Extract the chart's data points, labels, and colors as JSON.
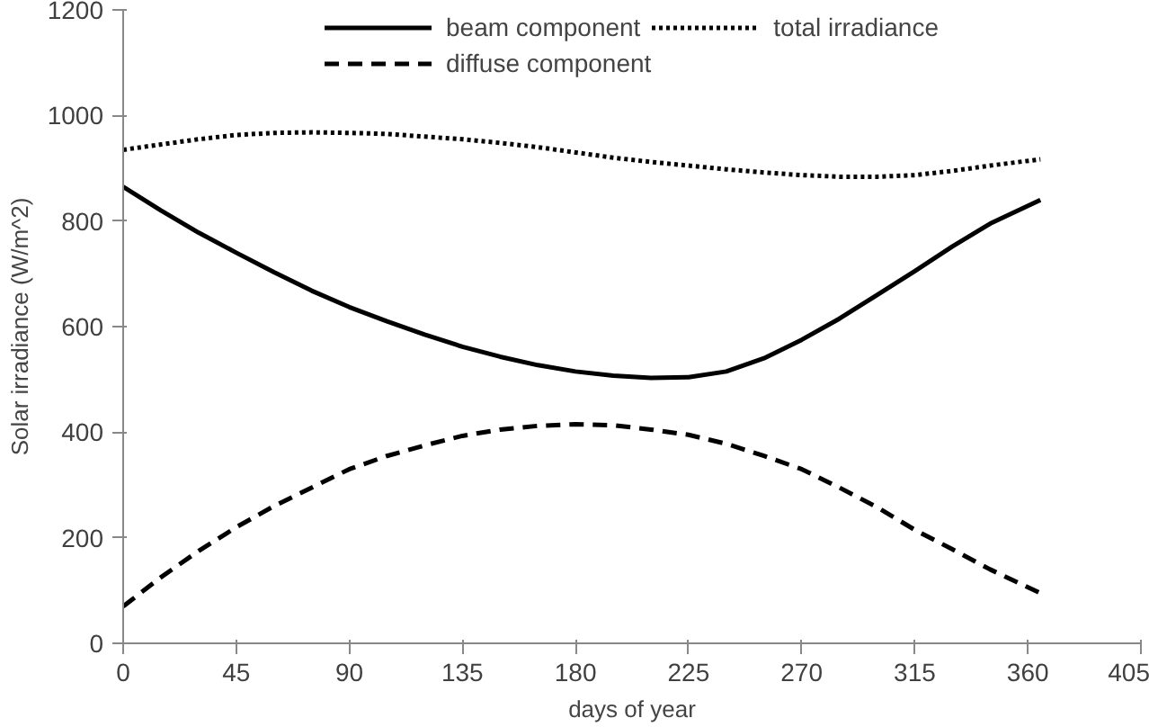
{
  "chart_data": {
    "type": "line",
    "xlabel": "days of year",
    "ylabel": "Solar irradiance (W/m^2)",
    "xlim": [
      0,
      405
    ],
    "xticks": [
      0,
      45,
      90,
      135,
      180,
      225,
      270,
      315,
      360,
      405
    ],
    "ylim": [
      0,
      1200
    ],
    "yticks": [
      0,
      200,
      400,
      600,
      800,
      1000,
      1200
    ],
    "x": [
      0,
      15,
      30,
      45,
      60,
      75,
      90,
      105,
      120,
      135,
      150,
      165,
      180,
      195,
      210,
      225,
      240,
      255,
      270,
      285,
      300,
      315,
      330,
      345,
      365
    ],
    "series": [
      {
        "name": "beam component",
        "color": "#000000",
        "line_style": "solid",
        "values": [
          865,
          820,
          778,
          740,
          703,
          668,
          637,
          610,
          585,
          562,
          543,
          527,
          515,
          507,
          503,
          504,
          515,
          540,
          575,
          615,
          660,
          705,
          752,
          795,
          840
        ]
      },
      {
        "name": "diffuse component",
        "color": "#000000",
        "line_style": "dashed",
        "values": [
          70,
          125,
          175,
          220,
          260,
          295,
          330,
          355,
          375,
          393,
          405,
          412,
          415,
          413,
          405,
          395,
          378,
          355,
          330,
          295,
          258,
          215,
          178,
          140,
          95
        ]
      },
      {
        "name": "total irradiance",
        "color": "#000000",
        "line_style": "dotted",
        "values": [
          935,
          945,
          955,
          963,
          967,
          968,
          967,
          965,
          960,
          955,
          948,
          940,
          930,
          920,
          912,
          905,
          898,
          892,
          887,
          884,
          884,
          887,
          895,
          905,
          917
        ]
      }
    ],
    "grid": false,
    "legend": "top"
  }
}
